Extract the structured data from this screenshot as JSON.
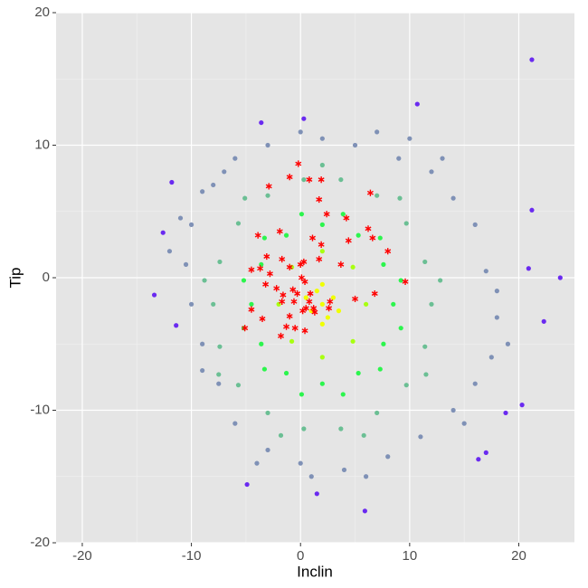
{
  "chart_data": {
    "type": "scatter",
    "xlabel": "Inclin",
    "ylabel": "Tip",
    "xlim": [
      -22.4,
      25.1
    ],
    "ylim": [
      -20,
      20
    ],
    "xticks": [
      -20,
      -10,
      0,
      10,
      20
    ],
    "yticks": [
      -20,
      -10,
      0,
      10,
      20
    ],
    "xminor": [
      -15,
      -5,
      5,
      15
    ],
    "yminor": [
      -15,
      -5,
      5,
      15
    ],
    "grid": true,
    "background": "#e5e5e5",
    "series": [
      {
        "color": "#6a2af0",
        "marker": "circle",
        "x": [
          21.2,
          10.7,
          -3.6,
          0.3,
          -11.8,
          -12.6,
          -13.4,
          -11.4,
          21.2,
          23.8,
          22.3,
          -4.9,
          1.5,
          5.9,
          16.3,
          17.0,
          20.3,
          18.8,
          20.9
        ],
        "values": [
          16.45,
          13.1,
          11.7,
          12.0,
          7.2,
          3.4,
          -1.3,
          -3.6,
          5.1,
          0,
          -3.3,
          -15.6,
          -16.3,
          -17.6,
          -13.7,
          -13.2,
          -9.6,
          -10.2,
          0.7
        ]
      },
      {
        "color": "#7f91b6",
        "marker": "circle",
        "x": [
          -8,
          -6,
          -3,
          2,
          5,
          9,
          12,
          14,
          16,
          17,
          18,
          17.5,
          16,
          14,
          11,
          8,
          4,
          0,
          -3,
          -6,
          -7.5,
          -9,
          -10,
          -10.5,
          -10,
          -9,
          -11,
          -7,
          0,
          7,
          13,
          18,
          15,
          -4,
          1,
          6,
          -9,
          10,
          -12,
          19
        ],
        "values": [
          7,
          9,
          10,
          10.5,
          10,
          9,
          8,
          6,
          4,
          0.5,
          -3,
          -6,
          -8,
          -10,
          -12,
          -13.5,
          -14.5,
          -14,
          -13,
          -11,
          -8,
          -5,
          -2,
          1,
          4,
          6.5,
          4.5,
          8,
          11,
          11,
          9,
          -1,
          -11,
          -14,
          -15,
          -15,
          -7,
          10.5,
          2,
          -5
        ]
      },
      {
        "color": "#6bbf94",
        "marker": "circle",
        "x": [
          12,
          11.4,
          9.7,
          7,
          3.7,
          0.3,
          -3,
          -5.7,
          -7.4,
          -8,
          -7.4,
          -5.7,
          -3,
          0.3,
          3.7,
          7,
          9.7,
          11.4,
          12.8,
          9.1,
          2,
          -5.1,
          -8.8,
          -7.5,
          -1.8,
          5.8,
          11.5
        ],
        "values": [
          -2,
          1.2,
          4.1,
          6.2,
          7.4,
          7.4,
          6.2,
          4.1,
          1.2,
          -2,
          -5.2,
          -8.1,
          -10.2,
          -11.4,
          -11.4,
          -10.2,
          -8.1,
          -5.2,
          -0.2,
          6,
          8.5,
          6,
          -0.2,
          -7.3,
          -11.9,
          -11.9,
          -7.3
        ]
      },
      {
        "color": "#2cf54d",
        "marker": "circle",
        "x": [
          8.5,
          7.6,
          5.3,
          2,
          -1.3,
          -3.6,
          -4.5,
          -3.6,
          -1.3,
          2,
          5.3,
          7.6,
          9.2,
          3.9,
          -3.3,
          -5.2,
          0.1,
          7.3,
          0.1,
          -5.2,
          -3.3,
          3.9,
          9.2,
          7.3
        ],
        "values": [
          -2,
          1,
          3.2,
          4,
          3.2,
          1,
          -2,
          -5,
          -7.2,
          -8,
          -7.2,
          -5,
          -0.2,
          4.8,
          3,
          -3.8,
          -8.8,
          -6.9,
          4.8,
          -0.2,
          -6.9,
          -8.8,
          -3.8,
          3
        ]
      },
      {
        "color": "#a8ff10",
        "marker": "circle",
        "x": [
          6,
          4.8,
          2,
          -0.8,
          -2,
          -0.8,
          2,
          4.8
        ],
        "values": [
          -2,
          0.8,
          2,
          0.8,
          -2,
          -4.8,
          -6,
          -4.8
        ]
      },
      {
        "color": "#f0ff00",
        "marker": "circle",
        "x": [
          2,
          3,
          1,
          2.5,
          1.5,
          3.5,
          0.5,
          2,
          2
        ],
        "values": [
          -2,
          -1.5,
          -2.5,
          -3,
          -1,
          -2.5,
          -1.5,
          -0.5,
          -3.5
        ]
      },
      {
        "color": "#ff0000",
        "marker": "star",
        "x": [
          -0.2,
          -1,
          -2.9,
          0.8,
          1.9,
          6.4,
          1.7,
          2.4,
          4.2,
          -3.9,
          -1.9,
          1.1,
          1.9,
          4.4,
          6.2,
          6.6,
          8.0,
          -3.1,
          -1.7,
          1.7,
          3.7,
          0.3,
          0,
          -4.5,
          -3.7,
          -2.8,
          -1.0,
          0.1,
          0.4,
          9.6,
          -3.2,
          -2.2,
          -0.7,
          -0.3,
          0.9,
          6.8,
          5.0,
          -1.6,
          -1.7,
          -0.6,
          0.8,
          2.7,
          -4.5,
          0.5,
          1.2,
          0.2,
          2.6,
          1.3,
          -3.5,
          -1.0,
          -1.3,
          -5.1,
          -0.5,
          0.4,
          -1.8
        ],
        "values": [
          8.6,
          7.6,
          6.9,
          7.4,
          7.4,
          6.4,
          5.9,
          4.8,
          4.5,
          3.2,
          3.5,
          3.0,
          2.5,
          2.8,
          3.7,
          3.0,
          2.0,
          1.6,
          1.4,
          1.4,
          1.0,
          1.2,
          1.0,
          0.6,
          0.7,
          0.3,
          0.8,
          0,
          -0.3,
          -0.3,
          -0.5,
          -0.8,
          -0.9,
          -1.2,
          -1.2,
          -1.2,
          -1.6,
          -1.3,
          -1.8,
          -1.8,
          -1.8,
          -1.8,
          -2.4,
          -2.3,
          -2.3,
          -2.5,
          -2.3,
          -2.6,
          -3.1,
          -2.9,
          -3.7,
          -3.8,
          -3.8,
          -4.0,
          -4.4
        ]
      }
    ]
  }
}
